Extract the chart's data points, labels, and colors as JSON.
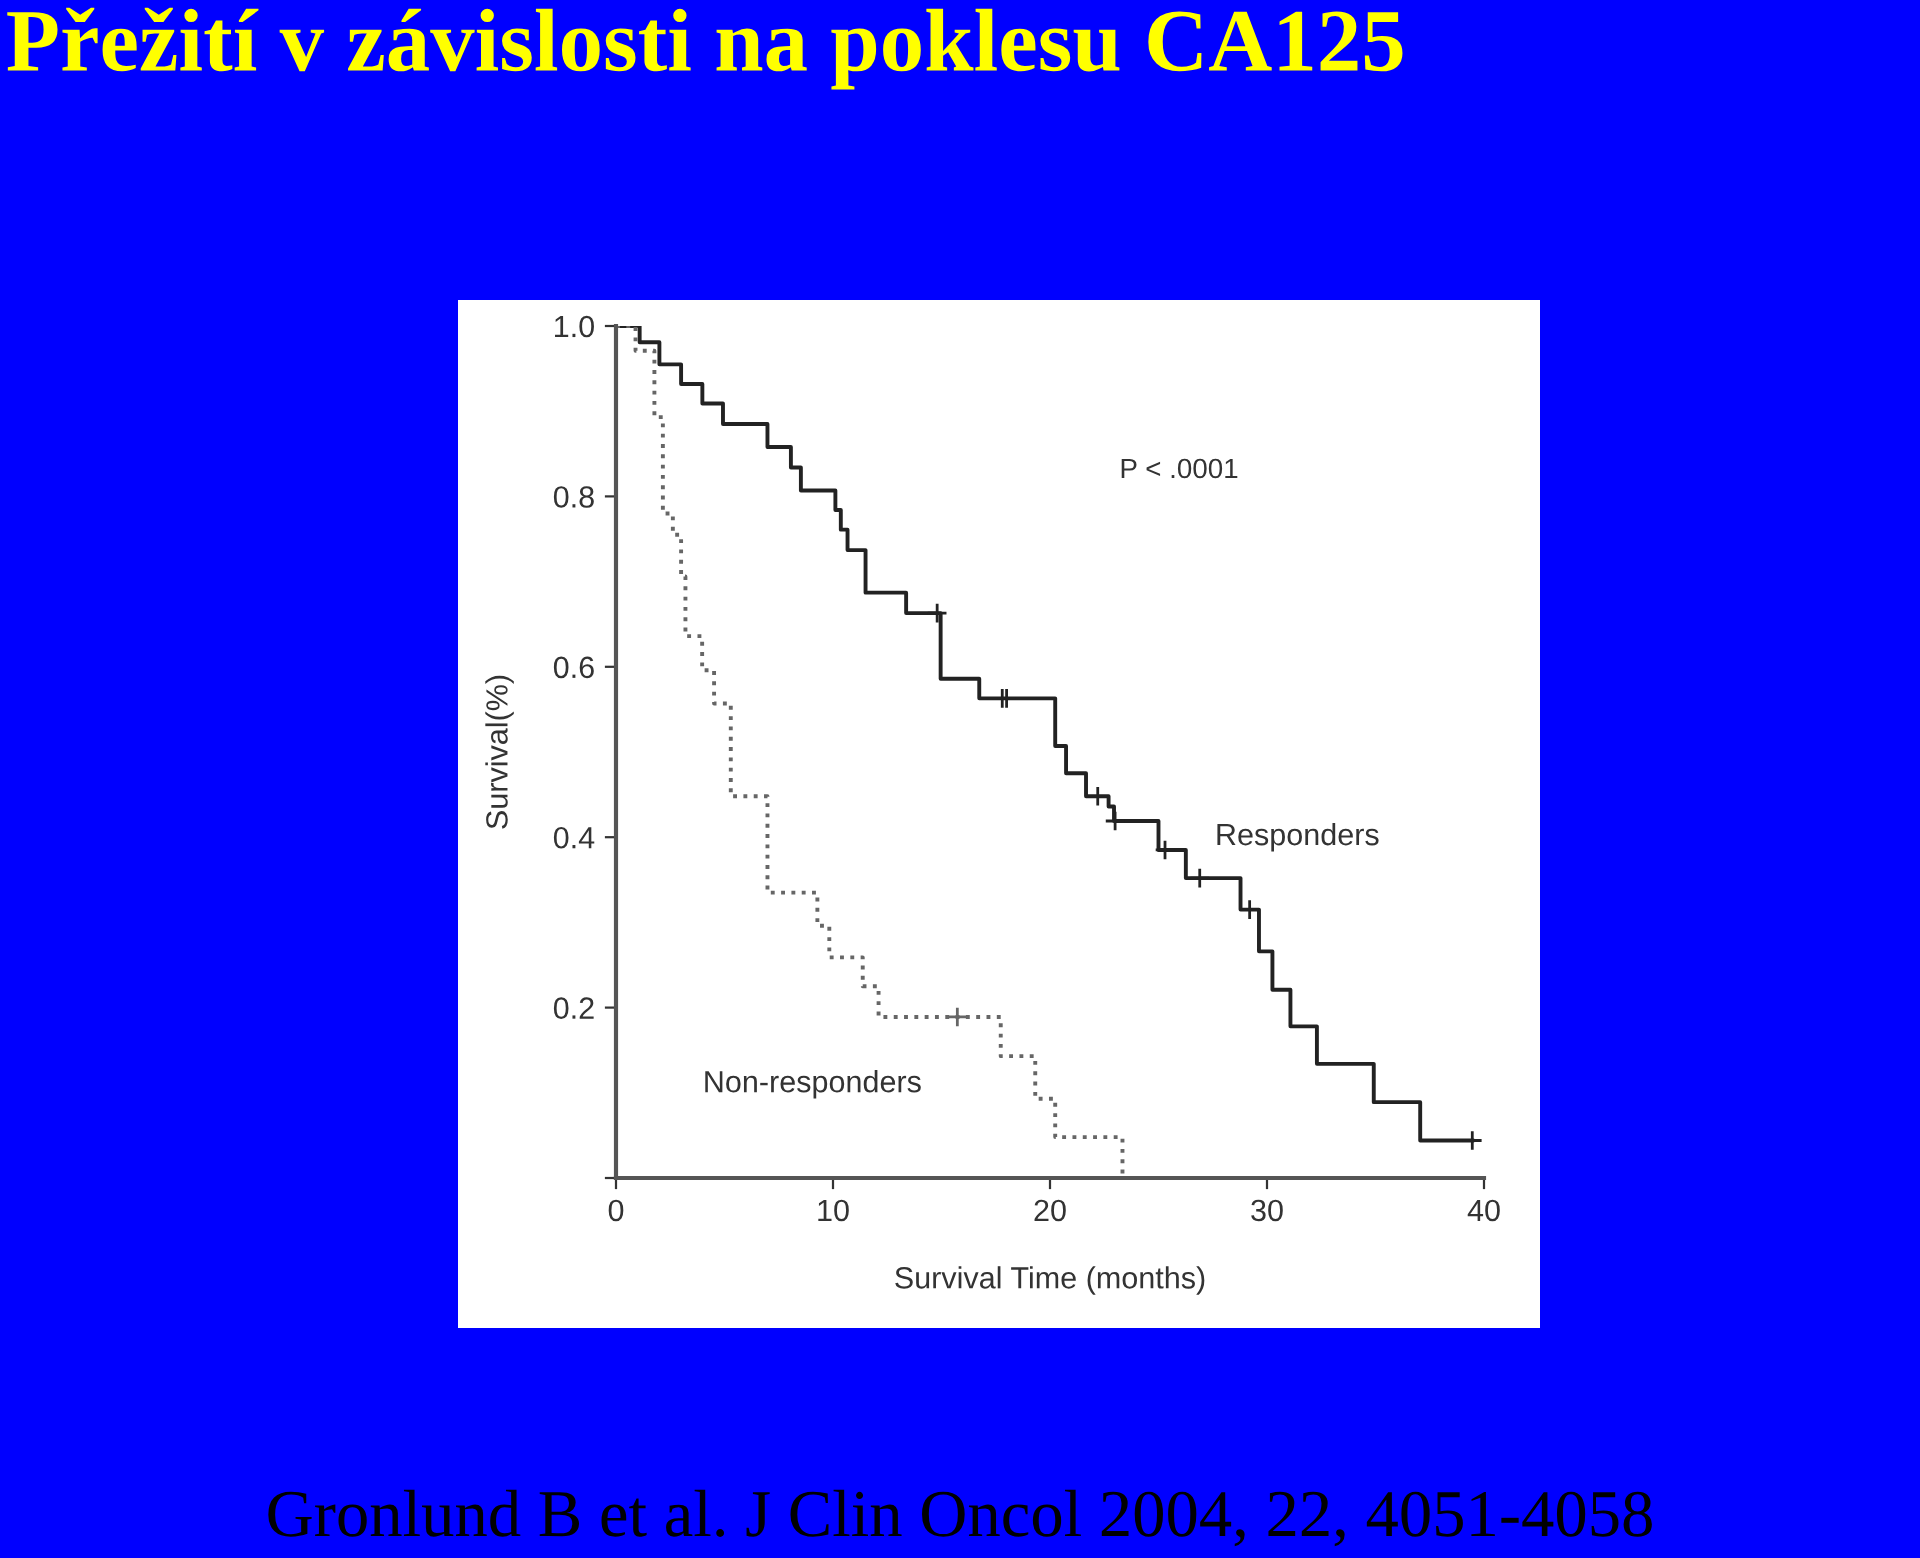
{
  "chart_data": {
    "type": "step",
    "title": "Přežití v závislosti na poklesu CA125",
    "xlabel": "Survival Time (months)",
    "ylabel": "Survival(%)",
    "xlim": [
      0,
      40
    ],
    "xticks": [
      0,
      10,
      20,
      30,
      40
    ],
    "ylim": [
      0,
      1.0
    ],
    "yticks": [
      {
        "value": 0,
        "label": null
      },
      0.2,
      0.4,
      0.6,
      0.8,
      {
        "value": 1.0,
        "label": "1.0"
      }
    ],
    "grid": false,
    "legend": false,
    "series": [
      {
        "name": "Responders",
        "color": "#222222",
        "line_style": "solid",
        "x": [
          0,
          1.09,
          2.0,
          3.0,
          3.98,
          4.93,
          6.98,
          8.06,
          8.52,
          10.11,
          10.36,
          10.67,
          11.5,
          13.37,
          14.96,
          16.74,
          20.24,
          20.74,
          21.66,
          22.7,
          22.95,
          25.0,
          26.26,
          28.78,
          29.63,
          30.25,
          31.08,
          32.3,
          34.92,
          37.06,
          39.46
        ],
        "values": [
          1.0,
          0.981,
          0.955,
          0.932,
          0.909,
          0.885,
          0.858,
          0.834,
          0.807,
          0.784,
          0.761,
          0.737,
          0.687,
          0.663,
          0.586,
          0.563,
          0.507,
          0.475,
          0.448,
          0.436,
          0.419,
          0.385,
          0.352,
          0.315,
          0.266,
          0.221,
          0.178,
          0.134,
          0.089,
          0.044,
          0.044
        ]
      },
      {
        "name": "Non-responders",
        "color": "#666666",
        "line_style": "dotted",
        "x": [
          0,
          0.9,
          1.77,
          2.16,
          2.62,
          3.0,
          3.2,
          3.97,
          4.52,
          5.29,
          6.98,
          9.28,
          9.83,
          11.37,
          12.1,
          17.73,
          19.32,
          20.24,
          23.34
        ],
        "values": [
          1.0,
          0.971,
          0.893,
          0.78,
          0.755,
          0.706,
          0.636,
          0.596,
          0.557,
          0.448,
          0.335,
          0.296,
          0.259,
          0.225,
          0.189,
          0.143,
          0.093,
          0.048,
          0.0
        ]
      },
      {
        "type": "scatter",
        "color": "#222222",
        "marker": "cross",
        "x": [
          14.8,
          17.8,
          18.0,
          22.2,
          23.0,
          25.3,
          26.9,
          29.2,
          39.46
        ],
        "values": [
          0.663,
          0.563,
          0.563,
          0.448,
          0.419,
          0.385,
          0.352,
          0.315,
          0.044
        ]
      },
      {
        "type": "scatter",
        "color": "#666666",
        "marker": "cross",
        "x": [
          15.73
        ],
        "values": [
          0.189
        ]
      }
    ],
    "annotations": [
      "P < .0001",
      "Gronlund B et al. J Clin Oncol 2004, 22, 4051-4058"
    ]
  }
}
